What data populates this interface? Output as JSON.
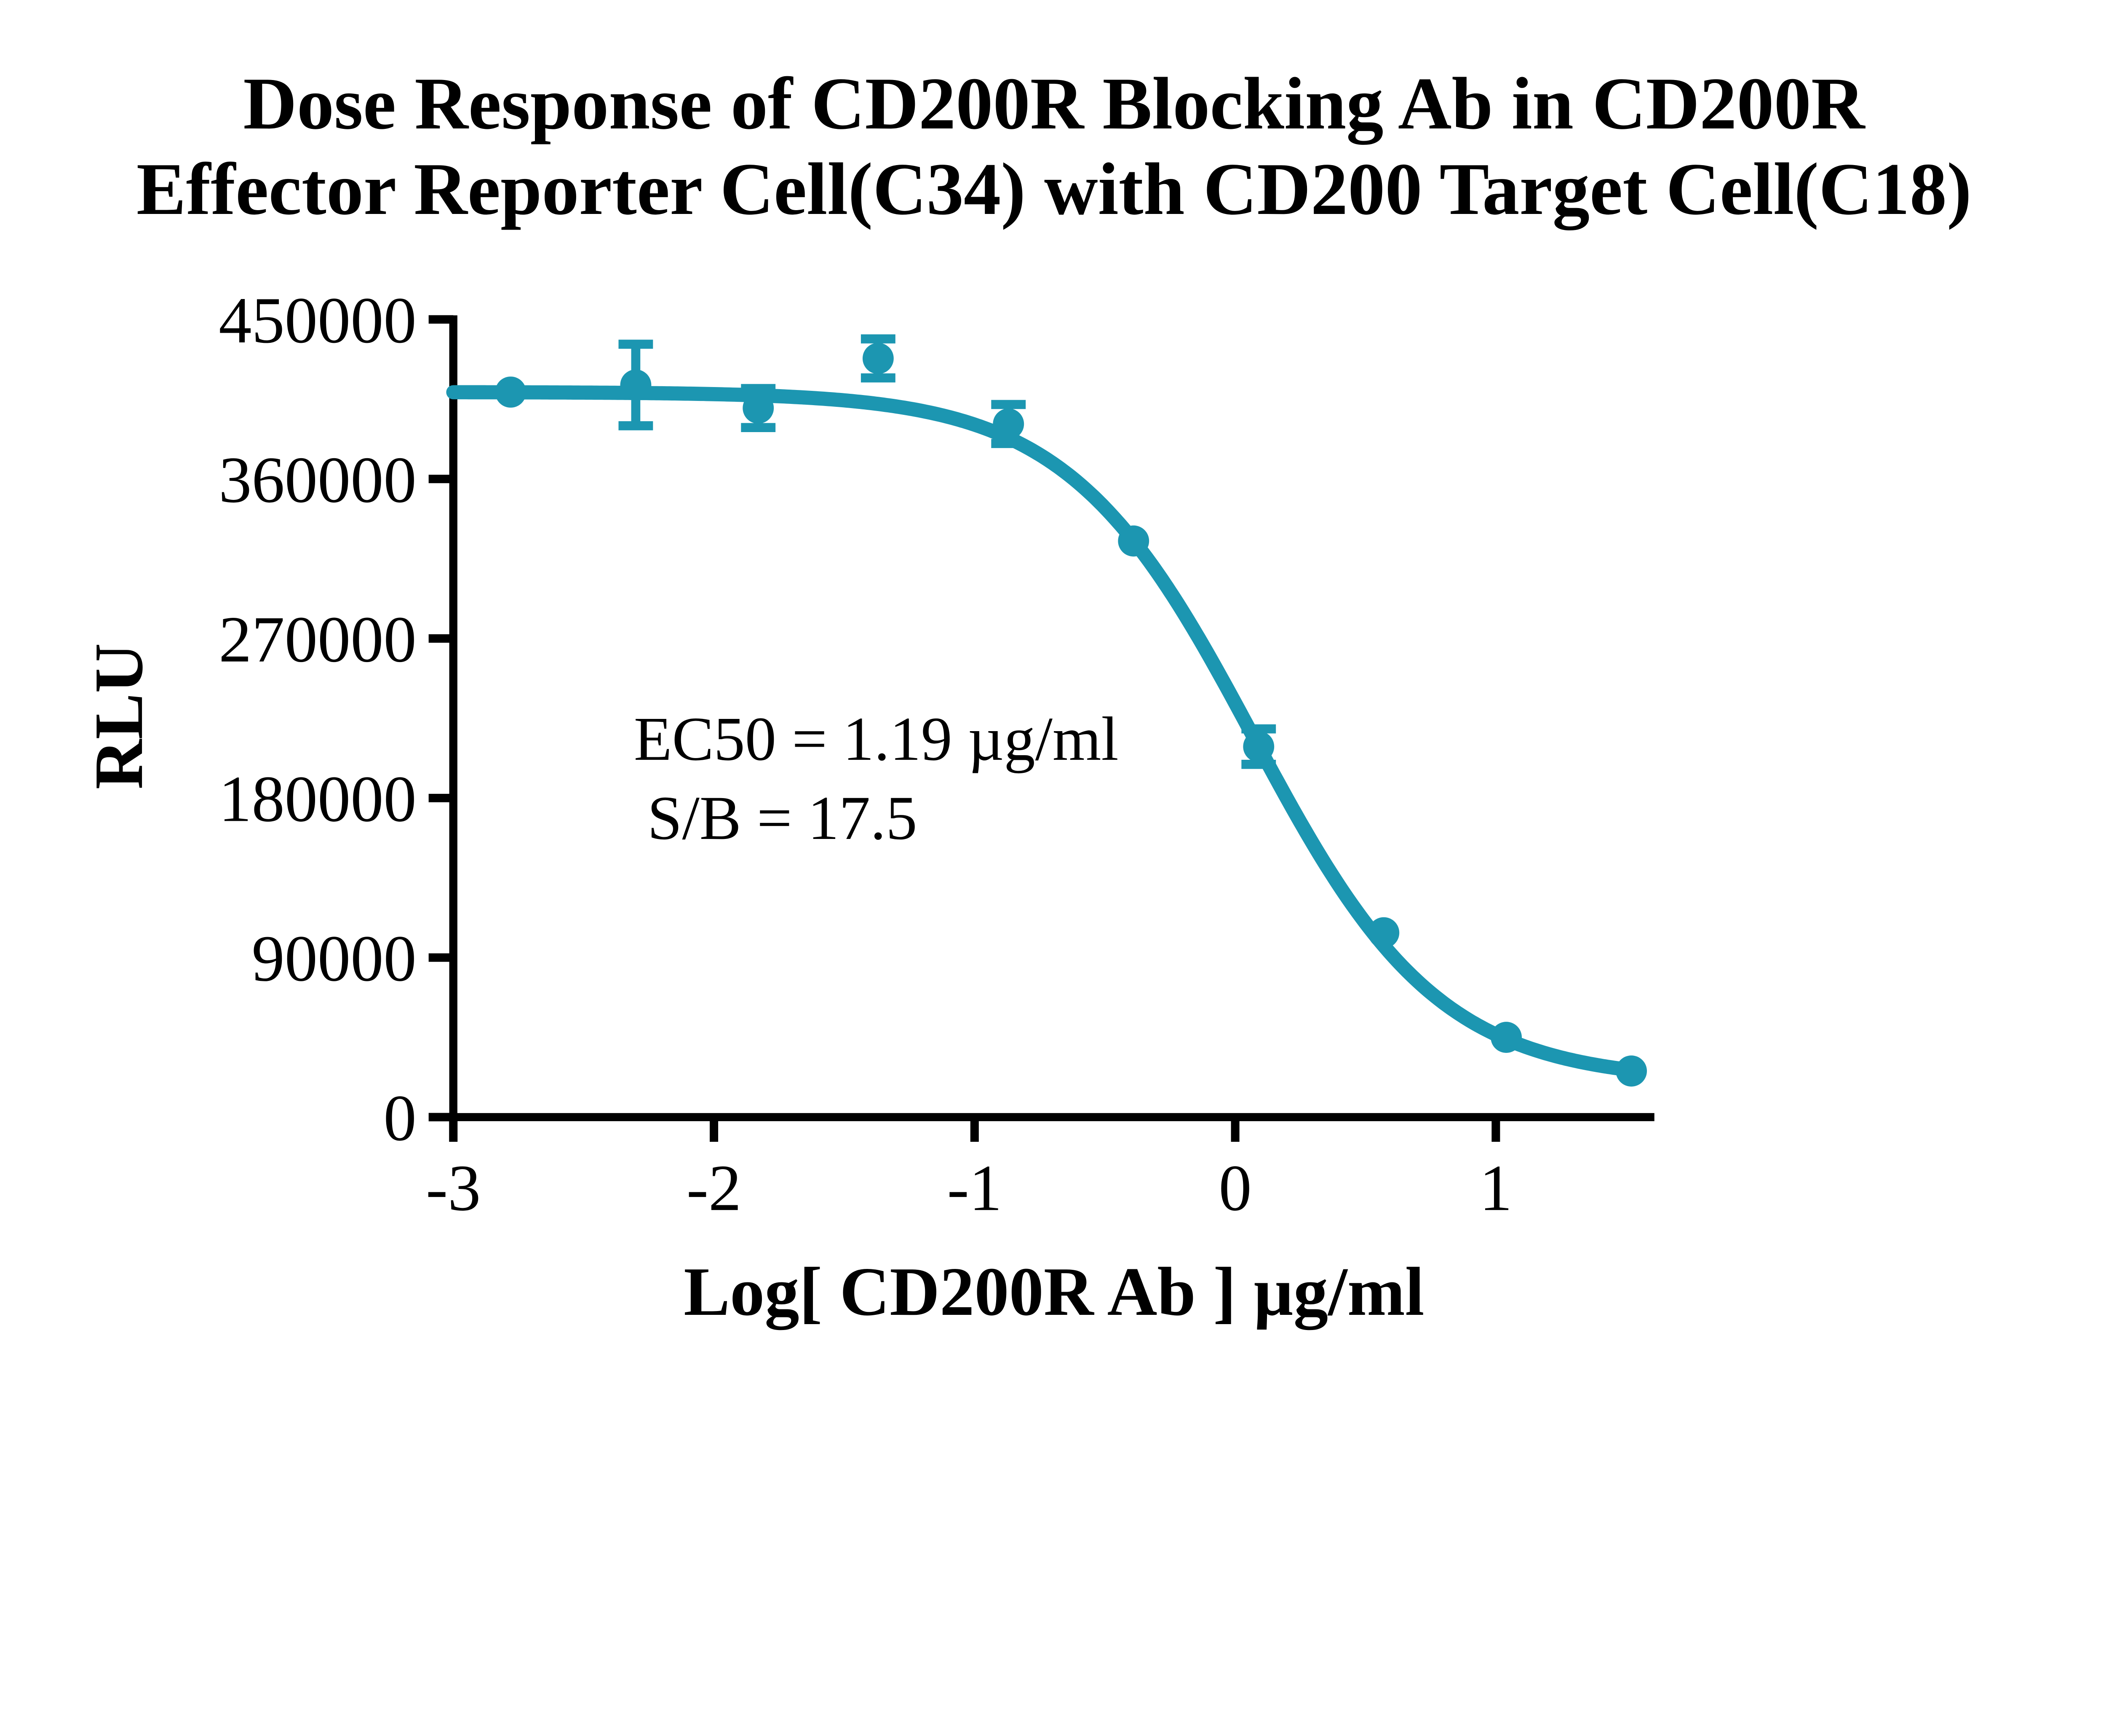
{
  "page": {
    "background": "#FFFFFF"
  },
  "chart_data": {
    "type": "scatter",
    "title_line1": "Dose Response of CD200R Blocking Ab in CD200R",
    "title_line2": "Effector Reporter Cell(C34) with CD200 Target Cell(C18)",
    "xlabel": "Log[ CD200R Ab ] µg/ml",
    "ylabel": "RLU",
    "annotation_line1": "EC50 = 1.19 µg/ml",
    "annotation_line2": "S/B = 17.5",
    "ec50_ug_ml": 1.19,
    "signal_to_background": 17.5,
    "series_color": "#1C96B1",
    "axis_color": "#000000",
    "xlim": [
      -3,
      1.62
    ],
    "ylim": [
      0,
      450000
    ],
    "x_ticks": [
      {
        "value": -3,
        "label": "-3"
      },
      {
        "value": -2,
        "label": "-2"
      },
      {
        "value": -1,
        "label": "-1"
      },
      {
        "value": 0,
        "label": "0"
      },
      {
        "value": 1,
        "label": "1"
      }
    ],
    "y_ticks": [
      {
        "value": 0,
        "label": "0"
      },
      {
        "value": 90000,
        "label": "90000"
      },
      {
        "value": 180000,
        "label": "180000"
      },
      {
        "value": 270000,
        "label": "270000"
      },
      {
        "value": 360000,
        "label": "360000"
      },
      {
        "value": 450000,
        "label": "450000"
      }
    ],
    "points": [
      {
        "x": -2.78,
        "y": 409000,
        "err": 0
      },
      {
        "x": -2.3,
        "y": 413000,
        "err": 23000
      },
      {
        "x": -1.83,
        "y": 400000,
        "err": 11000
      },
      {
        "x": -1.37,
        "y": 428000,
        "err": 11000
      },
      {
        "x": -0.87,
        "y": 391000,
        "err": 11000
      },
      {
        "x": -0.39,
        "y": 325000,
        "err": 0
      },
      {
        "x": 0.09,
        "y": 209000,
        "err": 10000
      },
      {
        "x": 0.57,
        "y": 104000,
        "err": 0
      },
      {
        "x": 1.04,
        "y": 45000,
        "err": 0
      },
      {
        "x": 1.52,
        "y": 26000,
        "err": 0
      }
    ],
    "fit": {
      "top": 409000,
      "bottom": 20000,
      "hill": 1.22,
      "log_ec50": 0.07,
      "x_start": -3.0,
      "x_end": 1.52
    },
    "legend": "none",
    "grid": "off"
  }
}
